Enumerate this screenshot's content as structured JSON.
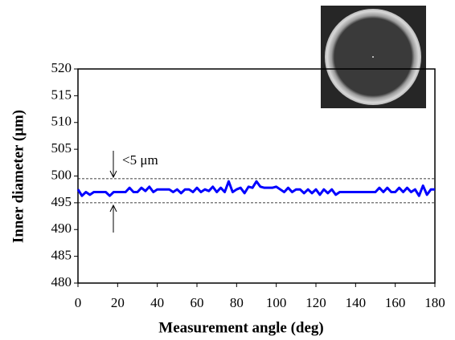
{
  "chart_data": {
    "type": "line",
    "x_label": "Measurement angle (deg)",
    "y_label": "Inner diameter (μm)",
    "annotation": "<5 μm",
    "x": [
      0,
      2,
      4,
      6,
      8,
      10,
      12,
      14,
      16,
      18,
      20,
      22,
      24,
      26,
      28,
      30,
      32,
      34,
      36,
      38,
      40,
      42,
      44,
      46,
      48,
      50,
      52,
      54,
      56,
      58,
      60,
      62,
      64,
      66,
      68,
      70,
      72,
      74,
      76,
      78,
      80,
      82,
      84,
      86,
      88,
      90,
      92,
      94,
      96,
      98,
      100,
      102,
      104,
      106,
      108,
      110,
      112,
      114,
      116,
      118,
      120,
      122,
      124,
      126,
      128,
      130,
      132,
      134,
      136,
      138,
      140,
      142,
      144,
      146,
      148,
      150,
      152,
      154,
      156,
      158,
      160,
      162,
      164,
      166,
      168,
      170,
      172,
      174,
      176,
      178,
      180
    ],
    "series": [
      {
        "color": "#0000ff",
        "values": [
          497.5,
          496.3,
          497,
          496.5,
          497,
          497,
          497,
          497,
          496.3,
          497,
          497,
          497,
          497,
          497.8,
          497,
          497,
          497.8,
          497.2,
          498,
          497,
          497.5,
          497.5,
          497.5,
          497.5,
          497,
          497.5,
          496.8,
          497.5,
          497.5,
          497,
          497.8,
          497,
          497.5,
          497.2,
          498,
          497,
          497.8,
          497,
          499,
          497,
          497.5,
          497.8,
          496.8,
          498,
          497.8,
          499,
          498,
          497.8,
          497.8,
          497.8,
          498,
          497.5,
          497,
          497.8,
          497,
          497.5,
          497.5,
          496.8,
          497.5,
          496.8,
          497.5,
          496.5,
          497.5,
          496.8,
          497.5,
          496.5,
          497,
          497,
          497,
          497,
          497,
          497,
          497,
          497,
          497,
          497,
          497.8,
          497,
          497.8,
          497,
          497,
          497.8,
          497,
          497.8,
          497,
          497.5,
          496.3,
          498.2,
          496.5,
          497.5,
          497.5
        ]
      }
    ],
    "reference_lines": [
      499.5,
      495
    ],
    "xlim": [
      0,
      180
    ],
    "xticks": [
      0,
      20,
      40,
      60,
      80,
      100,
      120,
      140,
      160,
      180
    ],
    "ylim": [
      480,
      520
    ],
    "yticks": [
      480,
      485,
      490,
      495,
      500,
      505,
      510,
      515,
      520
    ]
  }
}
